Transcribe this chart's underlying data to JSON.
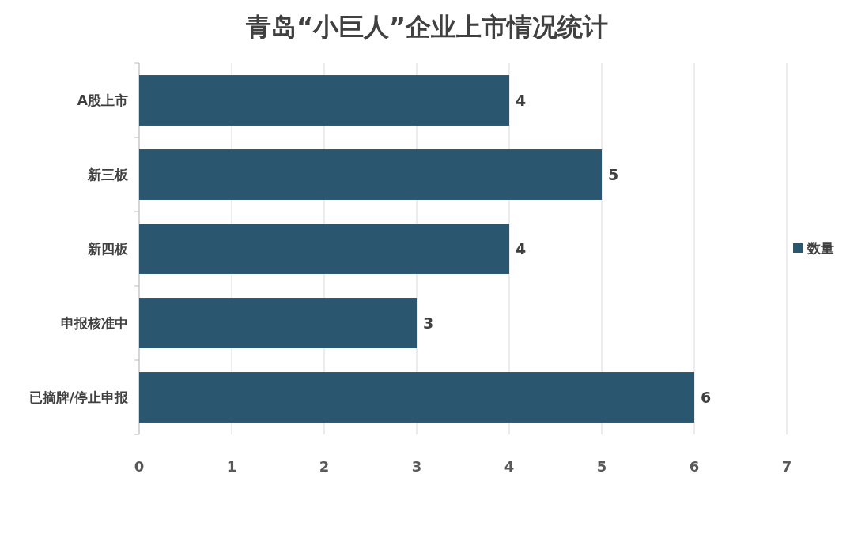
{
  "chart_data": {
    "type": "bar",
    "orientation": "horizontal",
    "title": "青岛“小巨人”企业上市情况统计",
    "categories": [
      "A股上市",
      "新三板",
      "新四板",
      "申报核准中",
      "已摘牌/停止申报"
    ],
    "series": [
      {
        "name": "数量",
        "color": "#2b5670",
        "values": [
          4,
          5,
          4,
          3,
          6
        ]
      }
    ],
    "xlim": [
      0,
      7
    ],
    "xticks": [
      0,
      1,
      2,
      3,
      4,
      5,
      6,
      7
    ],
    "grid": "x",
    "legend": "right",
    "data_labels": true
  }
}
